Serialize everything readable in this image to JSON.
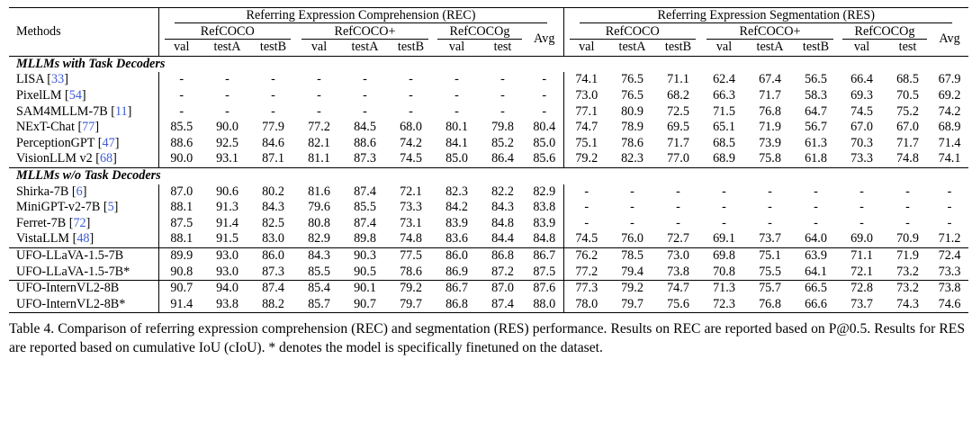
{
  "table": {
    "methods_header": "Methods",
    "rec_header": "Referring Expression Comprehension (REC)",
    "res_header": "Referring Expression Segmentation (RES)",
    "datasets": [
      "RefCOCO",
      "RefCOCO+",
      "RefCOCOg"
    ],
    "avg_header": "Avg",
    "splits_refcoco": [
      "val",
      "testA",
      "testB"
    ],
    "splits_refcocog": [
      "val",
      "test"
    ],
    "groups": [
      {
        "title": "MLLMs with Task Decoders",
        "rows": [
          {
            "name": "LISA",
            "cite": "33",
            "rec": [
              "-",
              "-",
              "-",
              "-",
              "-",
              "-",
              "-",
              "-",
              "-"
            ],
            "res": [
              "74.1",
              "76.5",
              "71.1",
              "62.4",
              "67.4",
              "56.5",
              "66.4",
              "68.5",
              "67.9"
            ],
            "bold_res": []
          },
          {
            "name": "PixelLM",
            "cite": "54",
            "rec": [
              "-",
              "-",
              "-",
              "-",
              "-",
              "-",
              "-",
              "-",
              "-"
            ],
            "res": [
              "73.0",
              "76.5",
              "68.2",
              "66.3",
              "71.7",
              "58.3",
              "69.3",
              "70.5",
              "69.2"
            ],
            "bold_res": []
          },
          {
            "name": "SAM4MLLM-7B",
            "cite": "11",
            "rec": [
              "-",
              "-",
              "-",
              "-",
              "-",
              "-",
              "-",
              "-",
              "-"
            ],
            "res": [
              "77.1",
              "80.9",
              "72.5",
              "71.5",
              "76.8",
              "64.7",
              "74.5",
              "75.2",
              "74.2"
            ],
            "bold_res": [
              6,
              7
            ]
          },
          {
            "name": "NExT-Chat",
            "cite": "77",
            "rec": [
              "85.5",
              "90.0",
              "77.9",
              "77.2",
              "84.5",
              "68.0",
              "80.1",
              "79.8",
              "80.4"
            ],
            "res": [
              "74.7",
              "78.9",
              "69.5",
              "65.1",
              "71.9",
              "56.7",
              "67.0",
              "67.0",
              "68.9"
            ],
            "bold_res": []
          },
          {
            "name": "PerceptionGPT",
            "cite": "47",
            "rec": [
              "88.6",
              "92.5",
              "84.6",
              "82.1",
              "88.6",
              "74.2",
              "84.1",
              "85.2",
              "85.0"
            ],
            "res": [
              "75.1",
              "78.6",
              "71.7",
              "68.5",
              "73.9",
              "61.3",
              "70.3",
              "71.7",
              "71.4"
            ],
            "bold_res": []
          },
          {
            "name": "VisionLLM v2",
            "cite": "68",
            "rec": [
              "90.0",
              "93.1",
              "87.1",
              "81.1",
              "87.3",
              "74.5",
              "85.0",
              "86.4",
              "85.6"
            ],
            "res": [
              "79.2",
              "82.3",
              "77.0",
              "68.9",
              "75.8",
              "61.8",
              "73.3",
              "74.8",
              "74.1"
            ],
            "bold_res": [
              0,
              1,
              2
            ]
          }
        ]
      },
      {
        "title": "MLLMs w/o Task Decoders",
        "rows": [
          {
            "name": "Shirka-7B",
            "cite": "6",
            "rec": [
              "87.0",
              "90.6",
              "80.2",
              "81.6",
              "87.4",
              "72.1",
              "82.3",
              "82.2",
              "82.9"
            ],
            "res": [
              "-",
              "-",
              "-",
              "-",
              "-",
              "-",
              "-",
              "-",
              "-"
            ],
            "bold_res": []
          },
          {
            "name": "MiniGPT-v2-7B",
            "cite": "5",
            "rec": [
              "88.1",
              "91.3",
              "84.3",
              "79.6",
              "85.5",
              "73.3",
              "84.2",
              "84.3",
              "83.8"
            ],
            "res": [
              "-",
              "-",
              "-",
              "-",
              "-",
              "-",
              "-",
              "-",
              "-"
            ],
            "bold_res": []
          },
          {
            "name": "Ferret-7B",
            "cite": "72",
            "rec": [
              "87.5",
              "91.4",
              "82.5",
              "80.8",
              "87.4",
              "73.1",
              "83.9",
              "84.8",
              "83.9"
            ],
            "res": [
              "-",
              "-",
              "-",
              "-",
              "-",
              "-",
              "-",
              "-",
              "-"
            ],
            "bold_res": []
          },
          {
            "name": "VistaLLM",
            "cite": "48",
            "rec": [
              "88.1",
              "91.5",
              "83.0",
              "82.9",
              "89.8",
              "74.8",
              "83.6",
              "84.4",
              "84.8"
            ],
            "res": [
              "74.5",
              "76.0",
              "72.7",
              "69.1",
              "73.7",
              "64.0",
              "69.0",
              "70.9",
              "71.2"
            ],
            "bold_res": []
          }
        ]
      }
    ],
    "ours_a": [
      {
        "name": "UFO-LLaVA-1.5-7B",
        "rec": [
          "89.9",
          "93.0",
          "86.0",
          "84.3",
          "90.3",
          "77.5",
          "86.0",
          "86.8",
          "86.7"
        ],
        "res": [
          "76.2",
          "78.5",
          "73.0",
          "69.8",
          "75.1",
          "63.9",
          "71.1",
          "71.9",
          "72.4"
        ],
        "bold_rec": [],
        "bold_res": []
      },
      {
        "name": "UFO-LLaVA-1.5-7B*",
        "rec": [
          "90.8",
          "93.0",
          "87.3",
          "85.5",
          "90.5",
          "78.6",
          "86.9",
          "87.2",
          "87.5"
        ],
        "res": [
          "77.2",
          "79.4",
          "73.8",
          "70.8",
          "75.5",
          "64.1",
          "72.1",
          "73.2",
          "73.3"
        ],
        "bold_rec": [],
        "bold_res": []
      }
    ],
    "ours_b": [
      {
        "name": "UFO-InternVL2-8B",
        "rec": [
          "90.7",
          "94.0",
          "87.4",
          "85.4",
          "90.1",
          "79.2",
          "86.7",
          "87.0",
          "87.6"
        ],
        "res": [
          "77.3",
          "79.2",
          "74.7",
          "71.3",
          "75.7",
          "66.5",
          "72.8",
          "73.2",
          "73.8"
        ],
        "bold_rec": [],
        "bold_res": []
      },
      {
        "name": "UFO-InternVL2-8B*",
        "rec": [
          "91.4",
          "93.8",
          "88.2",
          "85.7",
          "90.7",
          "79.7",
          "86.8",
          "87.4",
          "88.0"
        ],
        "res": [
          "78.0",
          "79.7",
          "75.6",
          "72.3",
          "76.8",
          "66.6",
          "73.7",
          "74.3",
          "74.6"
        ],
        "bold_rec": [
          0,
          1,
          2,
          3,
          4,
          5,
          6,
          7,
          8
        ],
        "bold_res": [
          3,
          4,
          5,
          8
        ]
      }
    ]
  },
  "caption": "Table 4. Comparison of referring expression comprehension (REC) and segmentation (RES) performance. Results on REC are reported based on P@0.5. Results for RES are reported based on cumulative IoU (cIoU). * denotes the model is specifically finetuned on the dataset."
}
